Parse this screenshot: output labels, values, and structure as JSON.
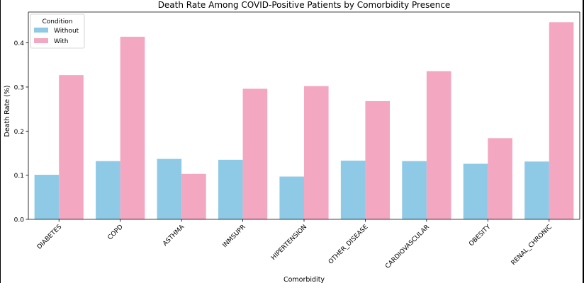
{
  "chart_data": {
    "type": "bar",
    "title": "Death Rate Among COVID-Positive Patients by Comorbidity Presence",
    "xlabel": "Comorbidity",
    "ylabel": "Death Rate (%)",
    "ylim": [
      0,
      0.47
    ],
    "yticks": [
      0.0,
      0.1,
      0.2,
      0.3,
      0.4
    ],
    "ytick_labels": [
      "0.0",
      "0.1",
      "0.2",
      "0.3",
      "0.4"
    ],
    "categories": [
      "DIABETES",
      "COPD",
      "ASTHMA",
      "INMSUPR",
      "HIPERTENSION",
      "OTHER_DISEASE",
      "CARDIOVASCULAR",
      "OBESITY",
      "RENAL_CHRONIC"
    ],
    "series": [
      {
        "name": "Without",
        "color": "#8ecae6",
        "values": [
          0.101,
          0.132,
          0.137,
          0.135,
          0.097,
          0.133,
          0.132,
          0.126,
          0.131
        ]
      },
      {
        "name": "With",
        "color": "#f4a7c0",
        "values": [
          0.327,
          0.414,
          0.103,
          0.296,
          0.302,
          0.268,
          0.336,
          0.184,
          0.447
        ]
      }
    ],
    "legend": {
      "title": "Condition",
      "placement": "top-left"
    },
    "grid": false
  }
}
